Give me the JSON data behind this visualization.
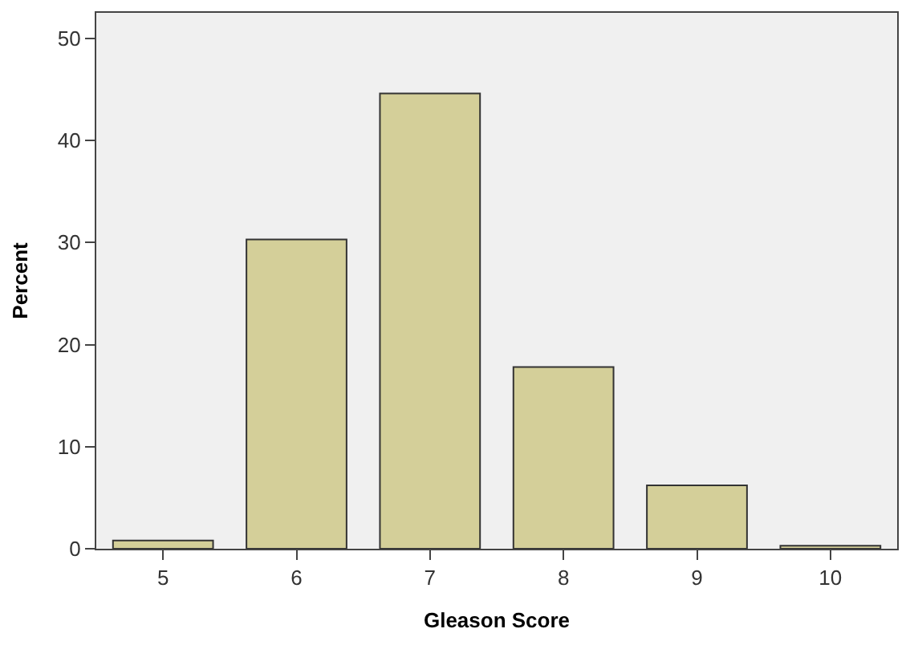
{
  "chart_data": {
    "type": "bar",
    "xlabel": "Gleason Score",
    "ylabel": "Percent",
    "categories": [
      "5",
      "6",
      "7",
      "8",
      "9",
      "10"
    ],
    "values": [
      0.8,
      30.3,
      44.6,
      17.8,
      6.2,
      0.3
    ],
    "color": "#d4cf99",
    "ylim": [
      0,
      52.5
    ],
    "yticks": [
      0,
      10,
      20,
      30,
      40,
      50
    ],
    "grid": false
  }
}
